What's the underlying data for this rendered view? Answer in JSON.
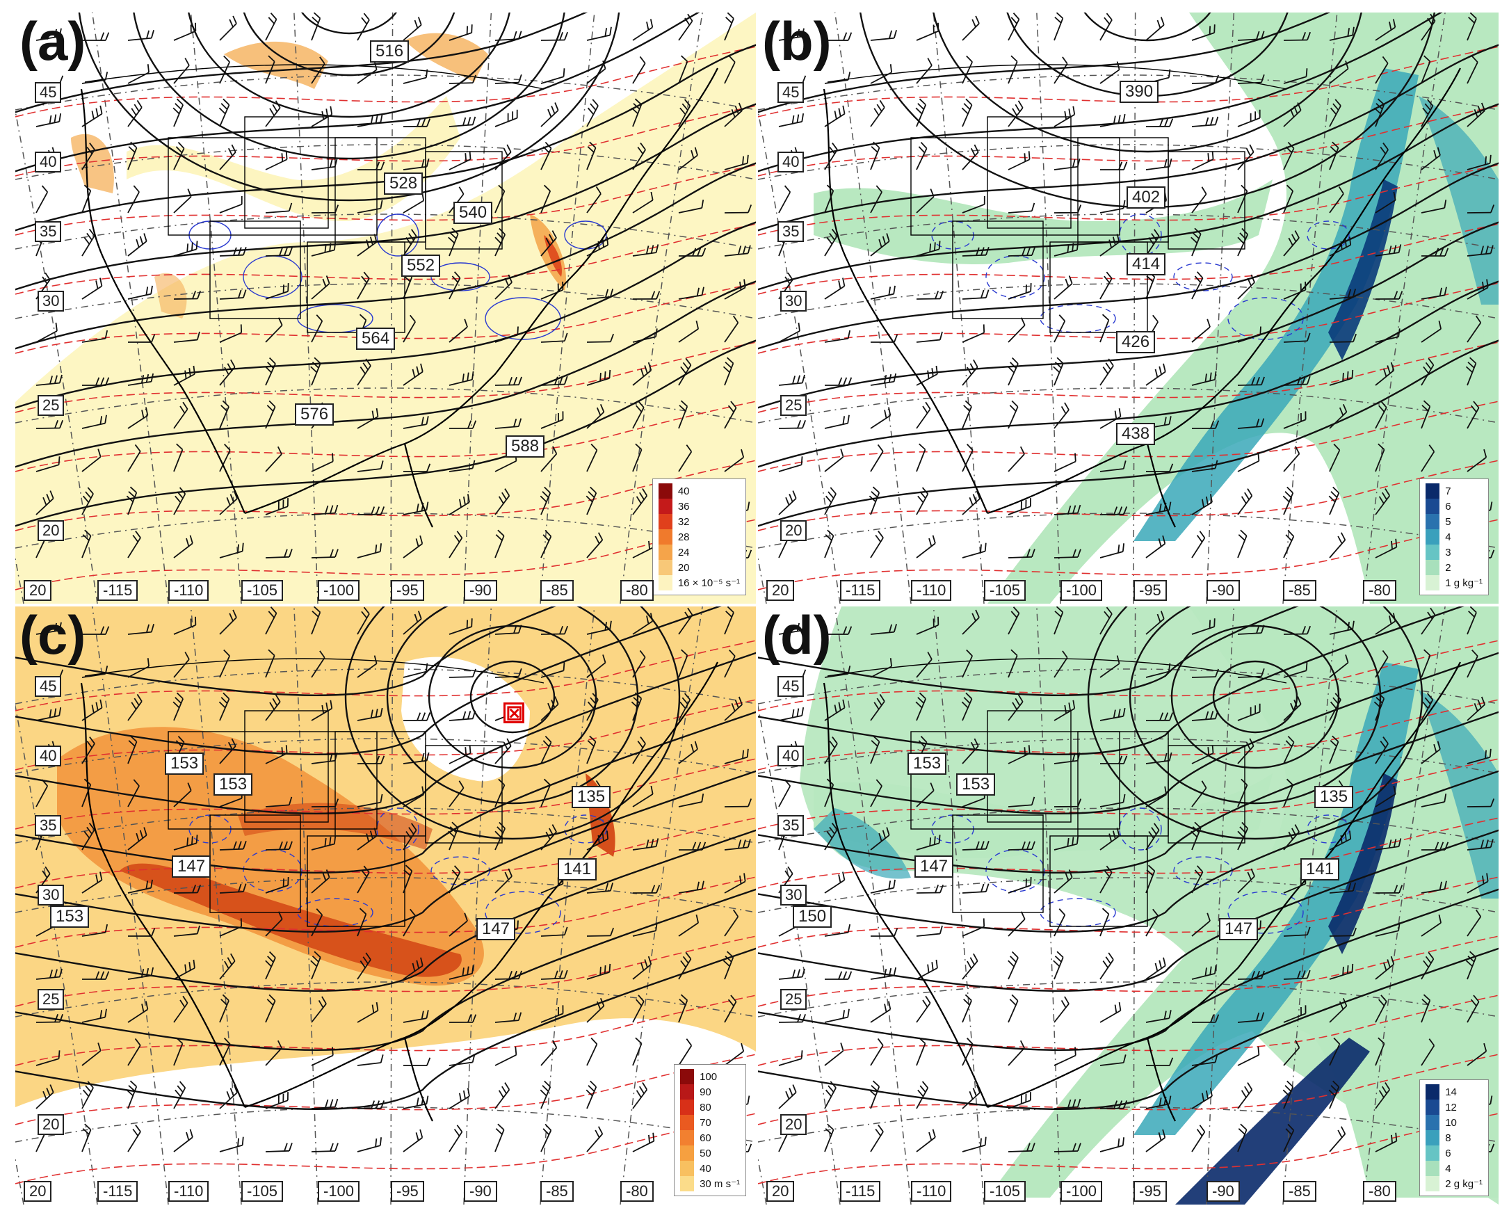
{
  "panels": [
    {
      "id": "a",
      "label": "(a)",
      "fill": "warm",
      "colors": {
        "base": "#fdf5c0",
        "strong": "#f5b05a",
        "accent": "#e05020"
      },
      "contour_labels": [
        "516",
        "528",
        "540",
        "552",
        "564",
        "576",
        "588"
      ],
      "lat_labels": [
        "45",
        "40",
        "35",
        "30",
        "25",
        "20"
      ],
      "lon_labels": [
        "20",
        "-115",
        "-110",
        "-105",
        "-100",
        "-95",
        "-90",
        "-85",
        "-80"
      ],
      "legend": {
        "values": [
          "40",
          "36",
          "32",
          "28",
          "24",
          "20",
          "16 × 10⁻⁵ s⁻¹"
        ],
        "colors": [
          "#8b0a0a",
          "#c41a1a",
          "#e0401c",
          "#f07a2c",
          "#f5a44a",
          "#f8c878",
          "#fdf3c0"
        ]
      }
    },
    {
      "id": "b",
      "label": "(b)",
      "fill": "moist",
      "colors": {
        "base": "#b8e8c0",
        "strong": "#3aa8b8",
        "accent": "#0a3a7a"
      },
      "contour_labels": [
        "390",
        "402",
        "414",
        "426",
        "438"
      ],
      "lat_labels": [
        "45",
        "40",
        "35",
        "30",
        "25",
        "20"
      ],
      "lon_labels": [
        "20",
        "-115",
        "-110",
        "-105",
        "-100",
        "-95",
        "-90",
        "-85",
        "-80"
      ],
      "legend": {
        "values": [
          "7",
          "6",
          "5",
          "4",
          "3",
          "2",
          "1 g kg⁻¹"
        ],
        "colors": [
          "#0a2a6a",
          "#1a4a92",
          "#2a72ae",
          "#3aa0bc",
          "#66c4c4",
          "#a8e0bc",
          "#d8f2d4"
        ]
      }
    },
    {
      "id": "c",
      "label": "(c)",
      "fill": "jet",
      "colors": {
        "base": "#fbd684",
        "strong": "#f08a30",
        "accent": "#d04010"
      },
      "contour_labels": [
        "153",
        "153",
        "135",
        "147",
        "141",
        "147",
        "153"
      ],
      "lat_labels": [
        "45",
        "40",
        "35",
        "30",
        "25",
        "20"
      ],
      "lon_labels": [
        "20",
        "-115",
        "-110",
        "-105",
        "-100",
        "-95",
        "-90",
        "-85",
        "-80"
      ],
      "legend": {
        "values": [
          "100",
          "90",
          "80",
          "70",
          "60",
          "50",
          "40",
          "30 m s⁻¹"
        ],
        "colors": [
          "#8b0a0a",
          "#b81818",
          "#d83018",
          "#ea5a20",
          "#f28030",
          "#f6a040",
          "#f8c060",
          "#fbdc8a"
        ]
      },
      "marker": "⊠"
    },
    {
      "id": "d",
      "label": "(d)",
      "fill": "moist",
      "colors": {
        "base": "#b8e8c0",
        "strong": "#3aa8b8",
        "accent": "#0a2a6a"
      },
      "contour_labels": [
        "153",
        "153",
        "135",
        "147",
        "141",
        "147",
        "150"
      ],
      "lat_labels": [
        "45",
        "40",
        "35",
        "30",
        "25",
        "20"
      ],
      "lon_labels": [
        "20",
        "-115",
        "-110",
        "-105",
        "-100",
        "-95",
        "-90",
        "-85",
        "-80"
      ],
      "legend": {
        "values": [
          "14",
          "12",
          "10",
          "8",
          "6",
          "4",
          "2 g kg⁻¹"
        ],
        "colors": [
          "#0a2a6a",
          "#1a4a92",
          "#2a72ae",
          "#3aa0bc",
          "#66c4c4",
          "#a8e0bc",
          "#d8f2d4"
        ]
      }
    }
  ]
}
